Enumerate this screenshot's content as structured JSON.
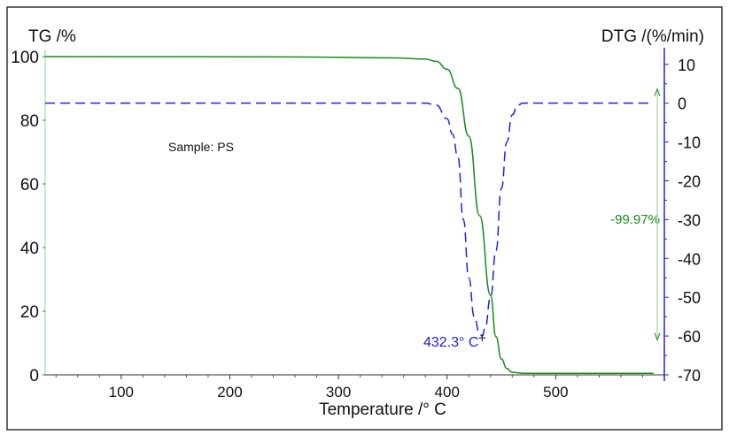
{
  "chart_data": {
    "type": "line",
    "xlabel": "Temperature /° C",
    "ylabel_left": "TG /%",
    "ylabel_right": "DTG /(%/min)",
    "xlim": [
      30,
      600
    ],
    "ylim_left": [
      0,
      100
    ],
    "ylim_right": [
      -70,
      12
    ],
    "x_ticks": [
      100,
      200,
      300,
      400,
      500
    ],
    "y_left_ticks": [
      0,
      20,
      40,
      60,
      80,
      100
    ],
    "y_right_ticks": [
      10,
      0,
      -10,
      -20,
      -30,
      -40,
      -50,
      -60,
      -70
    ],
    "grid": false,
    "colors": {
      "tg": "#1a8a1a",
      "dtg": "#2020e0",
      "text": "#111111"
    },
    "series": [
      {
        "key": "tg",
        "axis": "left",
        "style": "solid",
        "x": [
          30,
          250,
          350,
          380,
          390,
          400,
          410,
          420,
          430,
          440,
          445,
          450,
          455,
          460,
          470,
          590
        ],
        "y": [
          100,
          99.9,
          99.6,
          99.2,
          98.5,
          96,
          90,
          75,
          50,
          25,
          12,
          5,
          2,
          0.8,
          0.5,
          0.5
        ]
      },
      {
        "key": "dtg",
        "axis": "right",
        "style": "dashed",
        "x": [
          30,
          380,
          390,
          400,
          405,
          410,
          415,
          420,
          425,
          430,
          432.3,
          435,
          440,
          445,
          450,
          455,
          460,
          465,
          470,
          590
        ],
        "y": [
          0,
          0,
          -0.5,
          -4,
          -8,
          -14,
          -30,
          -45,
          -55,
          -59.5,
          -60,
          -58,
          -50,
          -38,
          -22,
          -10,
          -3,
          -0.5,
          0,
          0
        ]
      }
    ],
    "annotations": {
      "sample": "Sample: PS",
      "peak": "432.3° C",
      "peak_x": 432.3,
      "peak_y": -60,
      "mass_loss": "-99.97%"
    }
  }
}
